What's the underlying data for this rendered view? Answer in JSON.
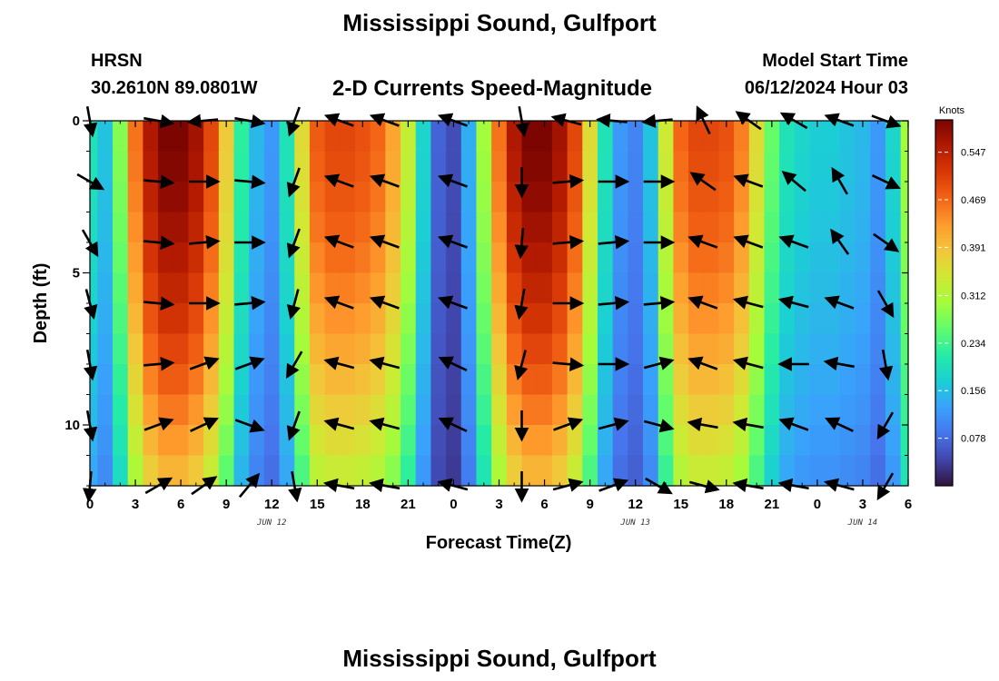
{
  "header": {
    "title": "Mississippi Sound, Gulfport",
    "station": "HRSN",
    "coordinates": "30.2610N  89.0801W",
    "subtitle": "2-D Currents Speed-Magnitude",
    "model_start_label": "Model Start Time",
    "model_start_value": "06/12/2024 Hour 03",
    "bottom_title": "Mississippi Sound, Gulfport"
  },
  "colors": {
    "colormap": [
      "#30123b",
      "#4145ab",
      "#4675ed",
      "#39a2fc",
      "#1bcfd4",
      "#24eca6",
      "#61fc6c",
      "#a4fc3b",
      "#d1e834",
      "#f3c63a",
      "#fe9b2d",
      "#f36315",
      "#d93806",
      "#b11901",
      "#7a0402"
    ],
    "vector_color": "#000000"
  },
  "chart_data": {
    "type": "heatmap",
    "title": "2-D Currents Speed-Magnitude",
    "xlabel": "Forecast Time(Z)",
    "ylabel": "Depth (ft)",
    "x_unit": "hours from 00Z JUN 12",
    "xlim": [
      0,
      54
    ],
    "ylim": [
      0,
      12
    ],
    "y_inverted": true,
    "x_ticks": [
      0,
      3,
      6,
      9,
      12,
      15,
      18,
      21,
      24,
      27,
      30,
      33,
      36,
      39,
      42,
      45,
      48,
      51,
      54
    ],
    "x_tick_labels": [
      "0",
      "3",
      "6",
      "9",
      "12",
      "15",
      "18",
      "21",
      "0",
      "3",
      "6",
      "9",
      "12",
      "15",
      "18",
      "21",
      "0",
      "3",
      "6"
    ],
    "y_ticks": [
      0,
      5,
      10
    ],
    "y_tick_labels": [
      "0",
      "5",
      "10"
    ],
    "date_labels": [
      {
        "x": 12,
        "text": "JUN 12"
      },
      {
        "x": 36,
        "text": "JUN 13"
      },
      {
        "x": 51,
        "text": "JUN 14"
      }
    ],
    "colorbar": {
      "unit": "Knots",
      "min": 0.0,
      "max": 0.6,
      "tick_values": [
        0.078,
        0.156,
        0.234,
        0.312,
        0.391,
        0.469,
        0.547
      ],
      "tick_labels": [
        "0.078",
        "0.156",
        "0.234",
        "0.312",
        "0.391",
        "0.469",
        "0.547"
      ]
    },
    "speed_profile": {
      "description": "peak surface speed (knots) per forecast hour; speed decreases with depth",
      "times": [
        0,
        1,
        2,
        3,
        4,
        5,
        6,
        7,
        8,
        9,
        10,
        11,
        12,
        13,
        14,
        15,
        16,
        17,
        18,
        19,
        20,
        21,
        22,
        23,
        24,
        25,
        26,
        27,
        28,
        29,
        30,
        31,
        32,
        33,
        34,
        35,
        36,
        37,
        38,
        39,
        40,
        41,
        42,
        43,
        44,
        45,
        46,
        47,
        48,
        49,
        50,
        51,
        52,
        53,
        54
      ],
      "surface_speed": [
        0.2,
        0.16,
        0.28,
        0.46,
        0.56,
        0.6,
        0.6,
        0.57,
        0.5,
        0.38,
        0.22,
        0.15,
        0.12,
        0.2,
        0.36,
        0.48,
        0.5,
        0.5,
        0.49,
        0.47,
        0.42,
        0.33,
        0.18,
        0.07,
        0.05,
        0.14,
        0.3,
        0.46,
        0.56,
        0.6,
        0.6,
        0.57,
        0.5,
        0.36,
        0.2,
        0.12,
        0.1,
        0.16,
        0.34,
        0.47,
        0.5,
        0.5,
        0.49,
        0.45,
        0.36,
        0.26,
        0.2,
        0.18,
        0.17,
        0.17,
        0.16,
        0.15,
        0.12,
        0.18,
        0.3
      ]
    },
    "vectors": {
      "description": "current direction arrows; angle in degrees clockwise from east (screen convention), relative length 0-1",
      "depths": [
        0,
        2,
        4,
        6,
        8,
        10,
        12
      ],
      "times": [
        0,
        4.5,
        7.5,
        10.5,
        13.5,
        16.5,
        19.5,
        24,
        28.5,
        31.5,
        34.5,
        37.5,
        40.5,
        43.5,
        46.5,
        49.5,
        52.5
      ],
      "angles_deg": [
        [
          80,
          10,
          175,
          10,
          110,
          200,
          200,
          200,
          80,
          195,
          185,
          175,
          245,
          215,
          210,
          200,
          20
        ],
        [
          30,
          5,
          0,
          5,
          110,
          200,
          200,
          200,
          90,
          355,
          0,
          0,
          215,
          200,
          220,
          240,
          25
        ],
        [
          60,
          5,
          355,
          0,
          110,
          200,
          200,
          200,
          95,
          355,
          355,
          0,
          200,
          200,
          200,
          235,
          35
        ],
        [
          75,
          5,
          0,
          355,
          105,
          200,
          200,
          200,
          100,
          0,
          355,
          355,
          200,
          195,
          195,
          200,
          60
        ],
        [
          80,
          355,
          340,
          340,
          120,
          195,
          195,
          205,
          105,
          5,
          0,
          345,
          200,
          195,
          180,
          190,
          80
        ],
        [
          80,
          340,
          335,
          20,
          110,
          195,
          195,
          205,
          90,
          340,
          345,
          15,
          190,
          190,
          200,
          205,
          120
        ],
        [
          95,
          330,
          325,
          310,
          80,
          190,
          190,
          195,
          90,
          345,
          340,
          30,
          15,
          190,
          190,
          195,
          120
        ]
      ]
    }
  }
}
